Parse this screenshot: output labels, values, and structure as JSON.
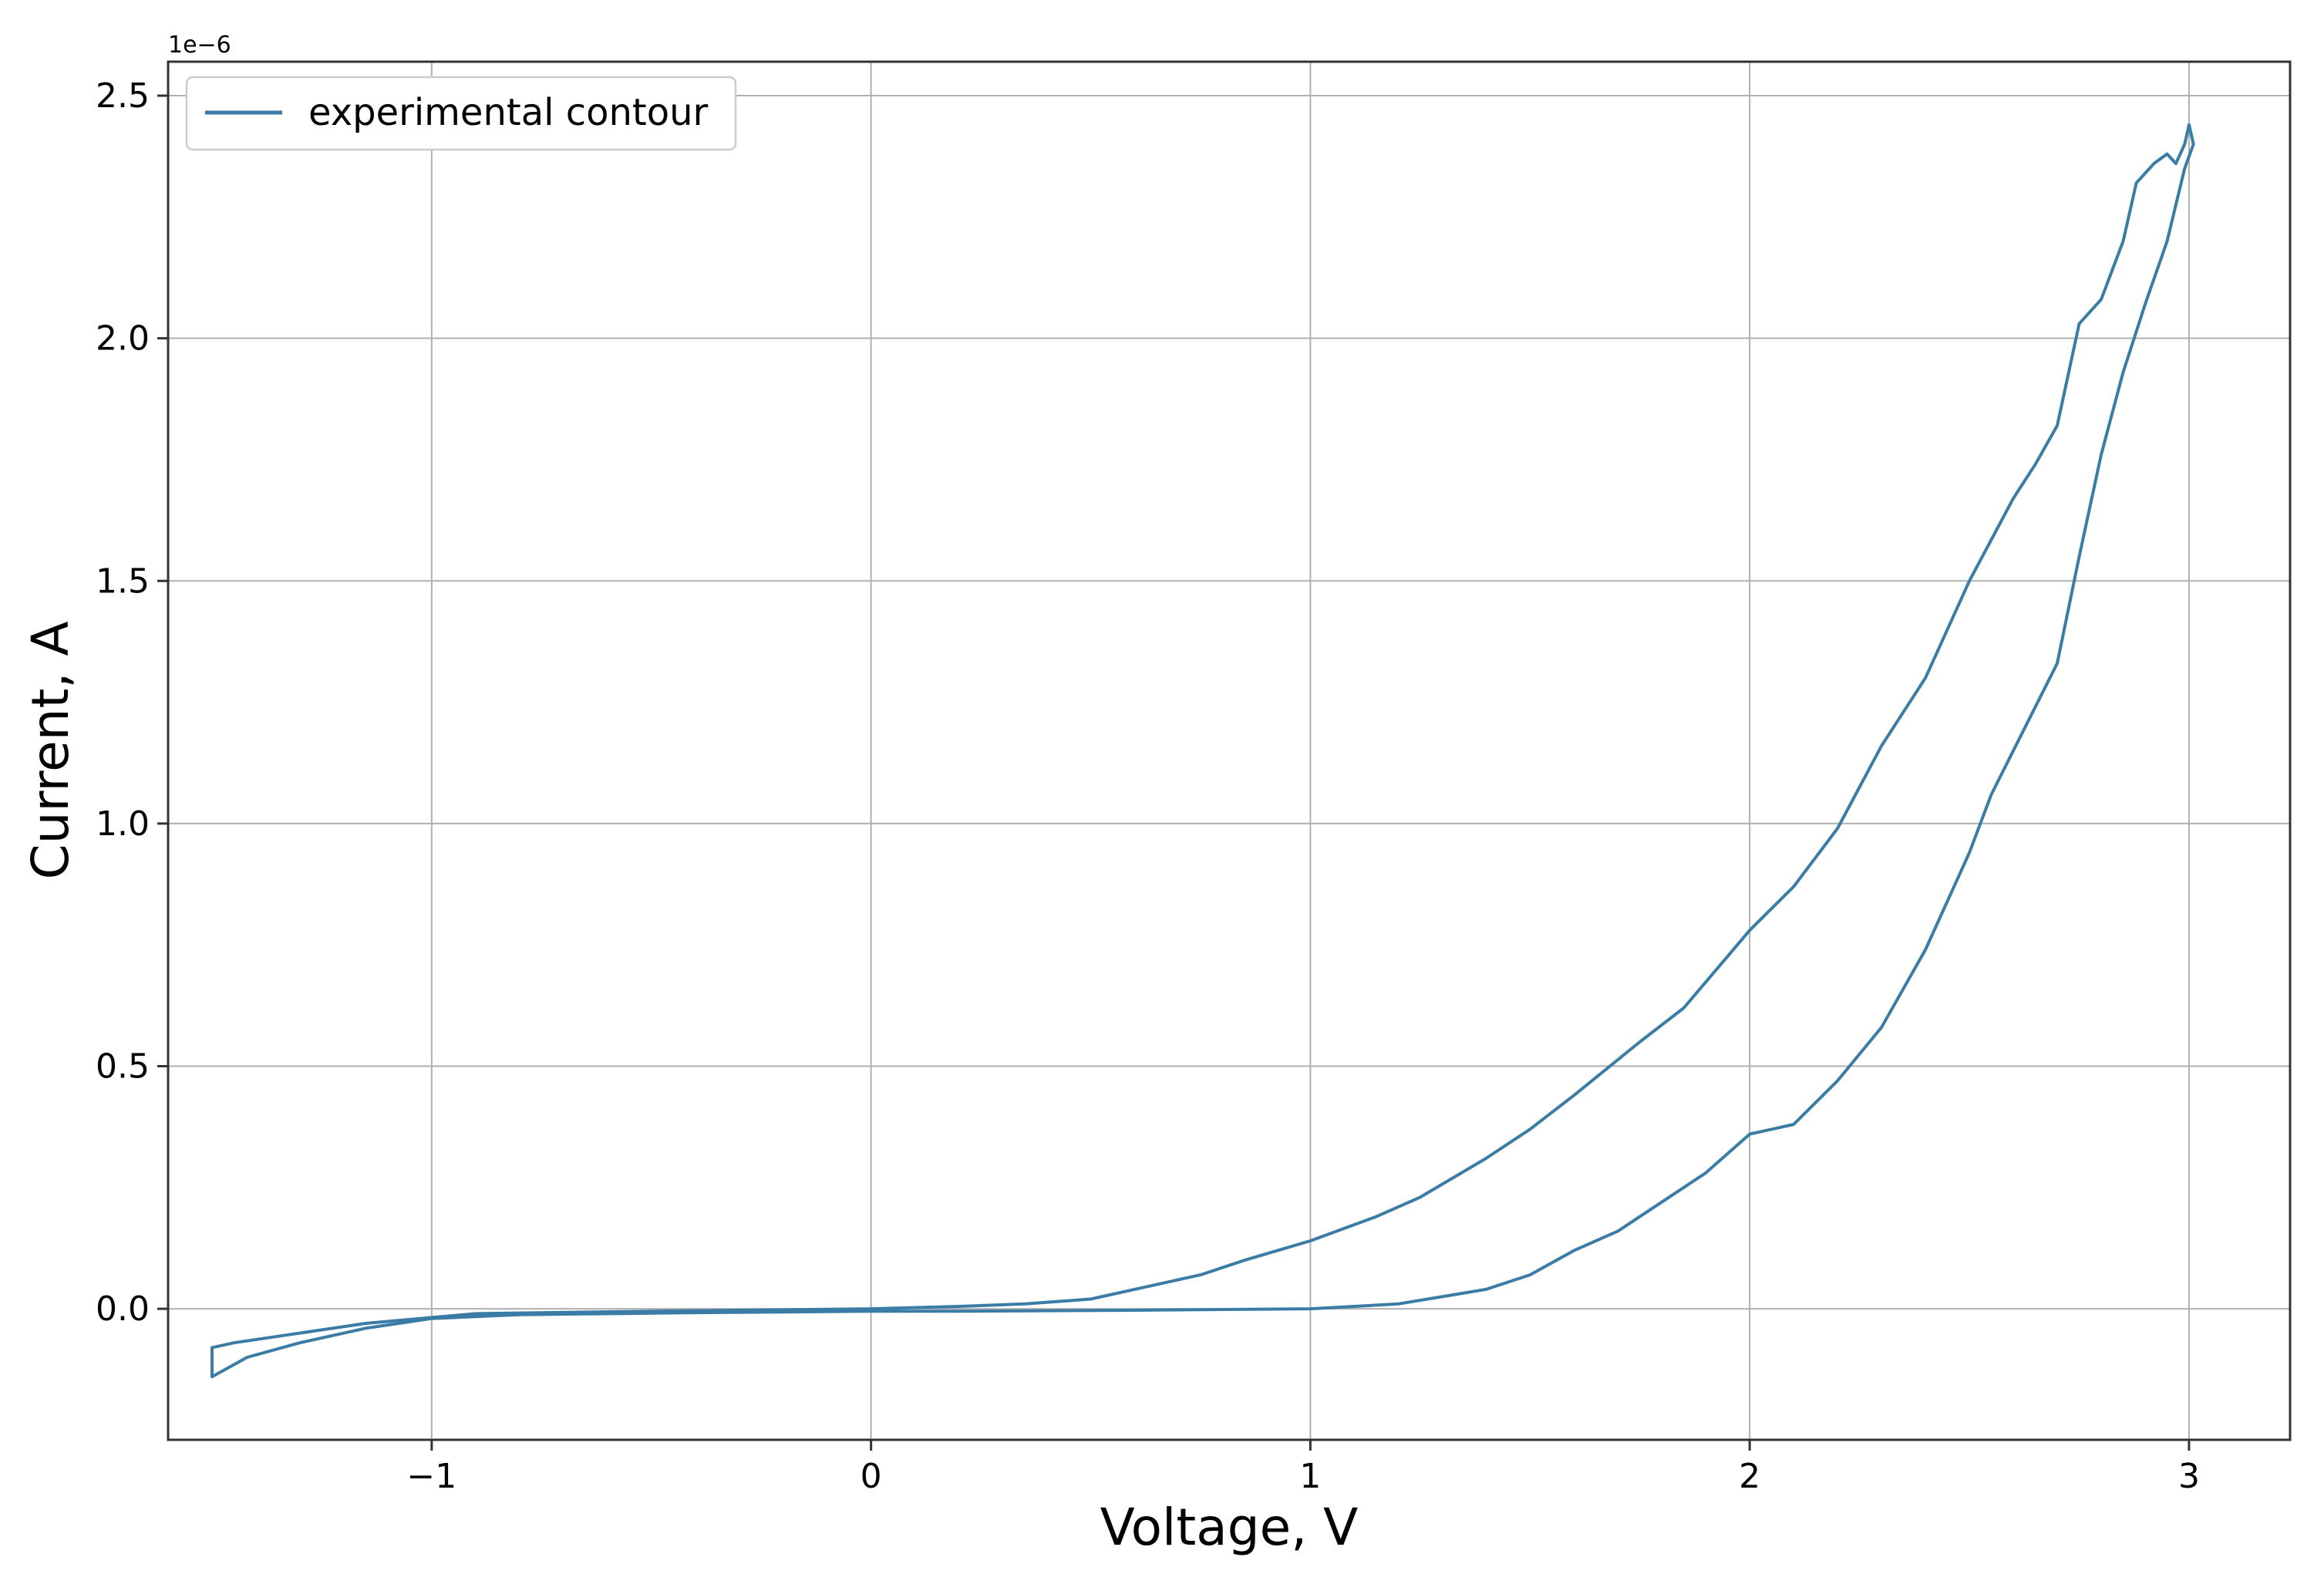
{
  "chart_data": {
    "type": "line",
    "xlabel": "Voltage, V",
    "ylabel": "Current, A",
    "y_offset_label": "1e−6",
    "xlim": [
      -1.6,
      3.23
    ],
    "ylim": [
      -0.27,
      2.57
    ],
    "x_ticks": [
      -1,
      0,
      1,
      2,
      3
    ],
    "x_tick_labels": [
      "−1",
      "0",
      "1",
      "2",
      "3"
    ],
    "y_ticks": [
      0.0,
      0.5,
      1.0,
      1.5,
      2.0,
      2.5
    ],
    "y_tick_labels": [
      "0.0",
      "0.5",
      "1.0",
      "1.5",
      "2.0",
      "2.5"
    ],
    "grid": true,
    "legend_position": "top-left",
    "colors": {
      "series": "#3a7ca5",
      "grid": "#b0b0b0",
      "axes": "#333333"
    },
    "series": [
      {
        "name": "experimental contour",
        "x": [
          0.0,
          0.2,
          0.35,
          0.5,
          0.6,
          0.75,
          0.85,
          1.0,
          1.15,
          1.25,
          1.4,
          1.5,
          1.6,
          1.75,
          1.85,
          2.0,
          2.1,
          2.2,
          2.3,
          2.4,
          2.5,
          2.6,
          2.65,
          2.7,
          2.75,
          2.8,
          2.85,
          2.88,
          2.92,
          2.95,
          2.97,
          2.99,
          3.0,
          3.01,
          2.99,
          2.95,
          2.9,
          2.85,
          2.8,
          2.75,
          2.7,
          2.65,
          2.6,
          2.55,
          2.5,
          2.45,
          2.4,
          2.3,
          2.2,
          2.1,
          2.0,
          1.9,
          1.8,
          1.7,
          1.6,
          1.5,
          1.4,
          1.2,
          1.0,
          0.6,
          0.2,
          0.0,
          -0.4,
          -0.8,
          -1.0,
          -1.15,
          -1.3,
          -1.42,
          -1.5,
          -1.5,
          -1.45,
          -1.3,
          -1.15,
          -0.9,
          -0.5,
          0.0
        ],
        "y": [
          0.0,
          0.005,
          0.01,
          0.02,
          0.04,
          0.07,
          0.1,
          0.14,
          0.19,
          0.23,
          0.31,
          0.37,
          0.44,
          0.55,
          0.62,
          0.78,
          0.87,
          0.99,
          1.16,
          1.3,
          1.5,
          1.67,
          1.74,
          1.82,
          2.03,
          2.08,
          2.2,
          2.32,
          2.36,
          2.38,
          2.36,
          2.4,
          2.44,
          2.4,
          2.35,
          2.2,
          2.07,
          1.93,
          1.76,
          1.55,
          1.33,
          1.24,
          1.15,
          1.06,
          0.94,
          0.84,
          0.74,
          0.58,
          0.47,
          0.38,
          0.36,
          0.28,
          0.22,
          0.16,
          0.12,
          0.07,
          0.04,
          0.01,
          0.0,
          -0.003,
          -0.005,
          -0.005,
          -0.008,
          -0.012,
          -0.02,
          -0.04,
          -0.07,
          -0.1,
          -0.14,
          -0.08,
          -0.07,
          -0.05,
          -0.03,
          -0.01,
          -0.005,
          0.0
        ]
      }
    ]
  }
}
